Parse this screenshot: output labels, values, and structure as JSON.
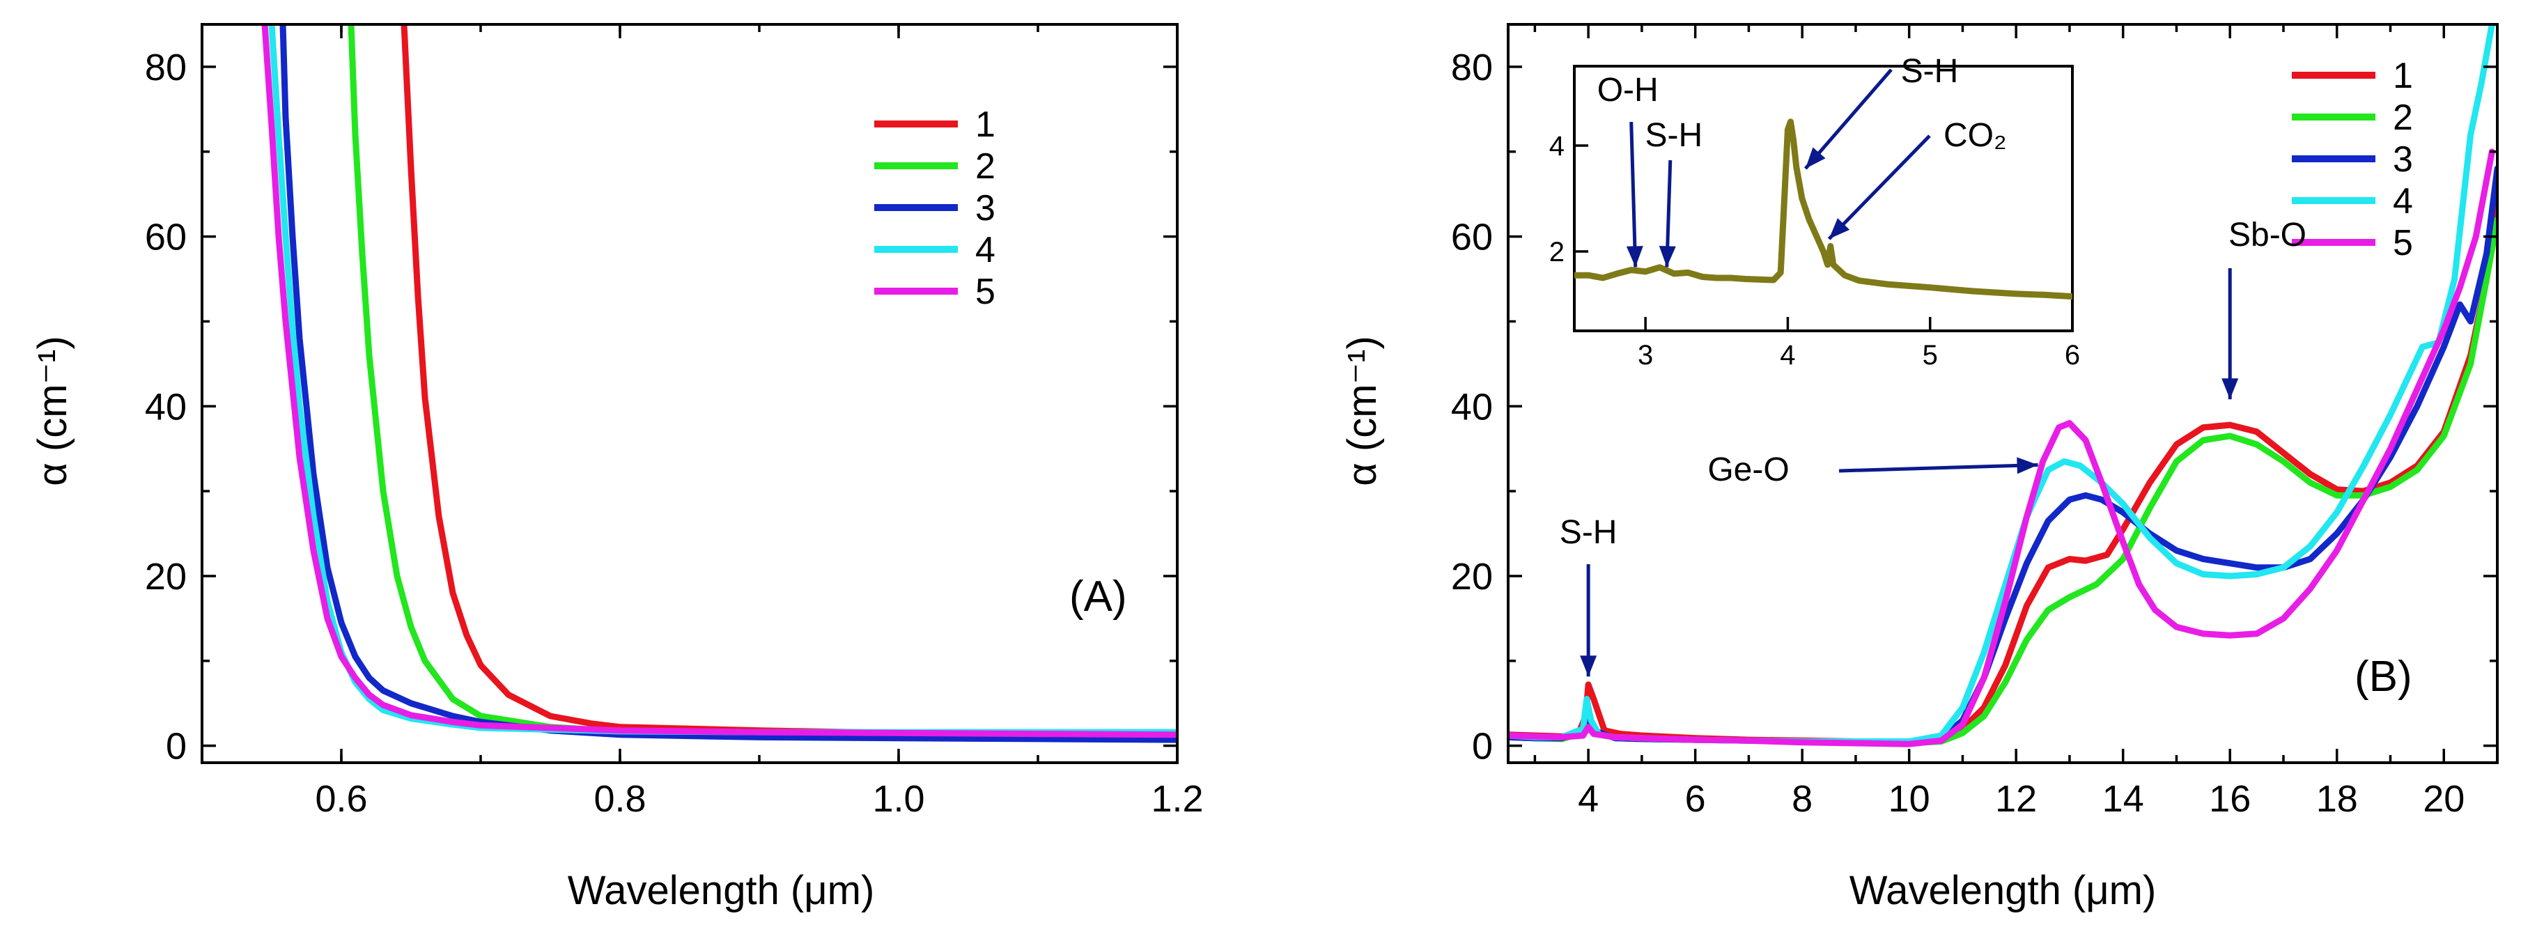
{
  "chart_data": [
    {
      "panel": "A",
      "type": "line",
      "panel_label": "(A)",
      "xlabel": "Wavelength (μm)",
      "ylabel": "α (cm⁻¹)",
      "xlim": [
        0.5,
        1.2
      ],
      "ylim": [
        -2,
        85
      ],
      "xticks": [
        {
          "v": 0.6,
          "label": "0.6"
        },
        {
          "v": 0.8,
          "label": "0.8"
        },
        {
          "v": 1.0,
          "label": "1.0"
        },
        {
          "v": 1.2,
          "label": "1.2"
        }
      ],
      "yticks": [
        {
          "v": 0,
          "label": "0"
        },
        {
          "v": 20,
          "label": "20"
        },
        {
          "v": 40,
          "label": "40"
        },
        {
          "v": 60,
          "label": "60"
        },
        {
          "v": 80,
          "label": "80"
        }
      ],
      "grid": false,
      "legend_position": "top-right",
      "series": [
        {
          "name": "1",
          "color": "#e8141e",
          "x": [
            0.645,
            0.65,
            0.655,
            0.66,
            0.67,
            0.68,
            0.69,
            0.7,
            0.72,
            0.75,
            0.78,
            0.8,
            0.9,
            1.0,
            1.1,
            1.2
          ],
          "y": [
            85,
            68,
            53,
            41,
            27,
            18,
            13,
            9.5,
            6,
            3.5,
            2.6,
            2.2,
            1.8,
            1.5,
            1.4,
            1.3
          ]
        },
        {
          "name": "2",
          "color": "#22e61e",
          "x": [
            0.607,
            0.61,
            0.615,
            0.62,
            0.63,
            0.64,
            0.65,
            0.66,
            0.68,
            0.7,
            0.75,
            0.8,
            0.9,
            1.0,
            1.1,
            1.2
          ],
          "y": [
            85,
            72,
            58,
            46,
            30,
            20,
            14,
            10,
            5.5,
            3.5,
            2.2,
            1.7,
            1.4,
            1.2,
            1.1,
            1.0
          ]
        },
        {
          "name": "3",
          "color": "#1228c8",
          "x": [
            0.558,
            0.56,
            0.565,
            0.57,
            0.58,
            0.59,
            0.6,
            0.61,
            0.62,
            0.63,
            0.65,
            0.68,
            0.7,
            0.75,
            0.8,
            0.9,
            1.0,
            1.1,
            1.2
          ],
          "y": [
            85,
            74,
            60,
            48,
            32,
            21,
            14.5,
            10.5,
            8,
            6.5,
            5,
            3.5,
            2.8,
            1.8,
            1.3,
            1.0,
            0.9,
            0.8,
            0.7
          ]
        },
        {
          "name": "4",
          "color": "#22e6f0",
          "x": [
            0.55,
            0.555,
            0.56,
            0.565,
            0.57,
            0.58,
            0.59,
            0.6,
            0.61,
            0.62,
            0.63,
            0.65,
            0.68,
            0.7,
            0.8,
            0.9,
            1.0,
            1.1,
            1.2
          ],
          "y": [
            85,
            72,
            60,
            49,
            40,
            27,
            17,
            11,
            7.5,
            5.5,
            4.2,
            3.2,
            2.5,
            2.1,
            1.7,
            1.6,
            1.6,
            1.6,
            1.6
          ]
        },
        {
          "name": "5",
          "color": "#e81ee6",
          "x": [
            0.545,
            0.55,
            0.555,
            0.56,
            0.57,
            0.58,
            0.59,
            0.6,
            0.61,
            0.62,
            0.63,
            0.65,
            0.68,
            0.7,
            0.8,
            0.9,
            1.0,
            1.1,
            1.2
          ],
          "y": [
            85,
            73,
            60,
            50,
            34,
            23,
            15,
            10.5,
            8,
            6,
            4.8,
            3.6,
            2.8,
            2.4,
            1.8,
            1.6,
            1.5,
            1.4,
            1.3
          ]
        }
      ]
    },
    {
      "panel": "B",
      "type": "line",
      "panel_label": "(B)",
      "xlabel": "Wavelength (μm)",
      "ylabel": "α (cm⁻¹)",
      "xlim": [
        2.5,
        21
      ],
      "ylim": [
        -2,
        85
      ],
      "xticks": [
        {
          "v": 4,
          "label": "4"
        },
        {
          "v": 6,
          "label": "6"
        },
        {
          "v": 8,
          "label": "8"
        },
        {
          "v": 10,
          "label": "10"
        },
        {
          "v": 12,
          "label": "12"
        },
        {
          "v": 14,
          "label": "14"
        },
        {
          "v": 16,
          "label": "16"
        },
        {
          "v": 18,
          "label": "18"
        },
        {
          "v": 20,
          "label": "20"
        }
      ],
      "yticks": [
        {
          "v": 0,
          "label": "0"
        },
        {
          "v": 20,
          "label": "20"
        },
        {
          "v": 40,
          "label": "40"
        },
        {
          "v": 60,
          "label": "60"
        },
        {
          "v": 80,
          "label": "80"
        }
      ],
      "grid": false,
      "legend_position": "top-right",
      "annotations": [
        {
          "text": "S-H",
          "x": 4.0,
          "y": 7.5
        },
        {
          "text": "Ge-O",
          "x": 12.8,
          "y": 33.5
        },
        {
          "text": "Sb-O",
          "x": 16.0,
          "y": 40.0
        }
      ],
      "series": [
        {
          "name": "1",
          "color": "#e8141e",
          "x": [
            2.5,
            3.0,
            3.5,
            3.8,
            3.95,
            4.0,
            4.1,
            4.3,
            4.6,
            5.0,
            6,
            7,
            8,
            9,
            10,
            10.6,
            11,
            11.4,
            11.8,
            12.2,
            12.6,
            13.0,
            13.3,
            13.7,
            14.0,
            14.5,
            15.0,
            15.5,
            16.0,
            16.5,
            17.0,
            17.5,
            18.0,
            18.5,
            19.0,
            19.5,
            20.0,
            20.5,
            20.8,
            21.0
          ],
          "y": [
            1.3,
            1.2,
            1.1,
            1.2,
            3.5,
            7.2,
            5.5,
            1.8,
            1.4,
            1.2,
            0.9,
            0.7,
            0.6,
            0.5,
            0.4,
            0.8,
            2.0,
            4.5,
            9.5,
            16.5,
            21.0,
            22.0,
            21.8,
            22.5,
            25.5,
            31.0,
            35.5,
            37.5,
            37.8,
            37.0,
            34.5,
            32.0,
            30.2,
            30.0,
            31.0,
            33.0,
            37.0,
            46.0,
            55.0,
            65.0
          ]
        },
        {
          "name": "2",
          "color": "#22e61e",
          "x": [
            2.5,
            3.0,
            3.5,
            3.9,
            4.0,
            4.1,
            4.5,
            5.0,
            6,
            7,
            8,
            9,
            10,
            10.6,
            11,
            11.4,
            11.8,
            12.2,
            12.6,
            13.0,
            13.5,
            14.0,
            14.5,
            15.0,
            15.5,
            16.0,
            16.5,
            17.0,
            17.5,
            18.0,
            18.5,
            19.0,
            19.5,
            20.0,
            20.5,
            20.8,
            21.0
          ],
          "y": [
            1.0,
            0.9,
            0.8,
            1.5,
            3.0,
            1.8,
            0.9,
            0.8,
            0.7,
            0.6,
            0.5,
            0.4,
            0.3,
            0.5,
            1.5,
            3.5,
            7.5,
            12.5,
            16.0,
            17.5,
            19.0,
            22.0,
            28.0,
            33.5,
            36.0,
            36.5,
            35.5,
            33.5,
            31.0,
            29.5,
            29.5,
            30.5,
            32.5,
            36.5,
            45.0,
            55.0,
            62.0
          ]
        },
        {
          "name": "3",
          "color": "#1228c8",
          "x": [
            2.5,
            3.0,
            3.5,
            3.9,
            4.0,
            4.1,
            4.5,
            5.0,
            6,
            7,
            8,
            9,
            10,
            10.6,
            11,
            11.4,
            11.8,
            12.2,
            12.6,
            13.0,
            13.3,
            13.6,
            14.0,
            14.5,
            15.0,
            15.5,
            16.0,
            16.5,
            17.0,
            17.5,
            18.0,
            18.5,
            19.0,
            19.5,
            20.0,
            20.3,
            20.5,
            20.8,
            21.0
          ],
          "y": [
            1.0,
            0.9,
            0.9,
            1.6,
            3.2,
            1.8,
            0.9,
            0.8,
            0.7,
            0.6,
            0.5,
            0.4,
            0.4,
            0.8,
            3.0,
            8.0,
            15.0,
            21.5,
            26.5,
            29.0,
            29.5,
            29.0,
            27.5,
            25.0,
            23.0,
            22.0,
            21.5,
            21.0,
            21.0,
            22.0,
            25.0,
            29.0,
            34.0,
            40.0,
            47.0,
            52.0,
            50.0,
            58.0,
            68.0
          ]
        },
        {
          "name": "4",
          "color": "#22e6f0",
          "x": [
            2.5,
            3.0,
            3.5,
            3.9,
            3.97,
            4.05,
            4.2,
            4.5,
            5.0,
            6,
            7,
            8,
            9,
            10,
            10.6,
            11,
            11.4,
            11.8,
            12.2,
            12.6,
            12.9,
            13.2,
            13.6,
            14.0,
            14.5,
            15.0,
            15.5,
            16.0,
            16.5,
            17.0,
            17.5,
            18.0,
            18.5,
            19.0,
            19.3,
            19.6,
            19.9,
            20.2,
            20.5,
            20.7,
            20.9
          ],
          "y": [
            1.2,
            1.0,
            1.0,
            2.0,
            5.5,
            3.0,
            1.3,
            1.0,
            0.9,
            0.7,
            0.6,
            0.5,
            0.5,
            0.5,
            1.2,
            4.5,
            11.0,
            19.0,
            27.0,
            32.5,
            33.5,
            33.0,
            31.0,
            28.5,
            24.5,
            21.5,
            20.2,
            20.0,
            20.2,
            21.0,
            23.5,
            27.5,
            33.0,
            39.0,
            43.0,
            47.0,
            47.5,
            55.0,
            72.0,
            78.0,
            85.0
          ]
        },
        {
          "name": "5",
          "color": "#e81ee6",
          "x": [
            2.5,
            3.0,
            3.5,
            3.9,
            4.0,
            4.1,
            4.5,
            5.0,
            6,
            7,
            8,
            9,
            10,
            10.6,
            11,
            11.4,
            11.8,
            12.2,
            12.5,
            12.8,
            13.0,
            13.3,
            13.6,
            14.0,
            14.3,
            14.6,
            15.0,
            15.5,
            16.0,
            16.5,
            17.0,
            17.5,
            18.0,
            18.5,
            19.0,
            19.5,
            20.0,
            20.3,
            20.6,
            20.9
          ],
          "y": [
            1.2,
            1.1,
            1.0,
            1.2,
            2.2,
            1.4,
            1.0,
            0.9,
            0.7,
            0.6,
            0.4,
            0.3,
            0.2,
            0.6,
            2.5,
            8.0,
            17.0,
            27.0,
            33.5,
            37.5,
            38.0,
            36.0,
            31.0,
            24.0,
            19.0,
            16.0,
            14.0,
            13.2,
            13.0,
            13.2,
            15.0,
            18.5,
            23.0,
            29.0,
            35.0,
            42.0,
            49.0,
            54.0,
            60.0,
            70.0
          ]
        }
      ],
      "inset": {
        "type": "line",
        "xlim": [
          2.5,
          6
        ],
        "ylim": [
          0.5,
          5.5
        ],
        "xticks": [
          {
            "v": 3,
            "label": "3"
          },
          {
            "v": 4,
            "label": "4"
          },
          {
            "v": 5,
            "label": "5"
          },
          {
            "v": 6,
            "label": "6"
          }
        ],
        "yticks": [
          {
            "v": 2,
            "label": "2"
          },
          {
            "v": 4,
            "label": "4"
          }
        ],
        "annotations": [
          {
            "text": "O-H",
            "x": 2.9,
            "y": 1.6
          },
          {
            "text": "S-H",
            "x": 3.15,
            "y": 1.6
          },
          {
            "text": "S-H",
            "x": 4.1,
            "y": 3.5
          },
          {
            "text": "CO₂",
            "x": 4.28,
            "y": 2.0
          }
        ],
        "series": [
          {
            "color": "#7f7a18",
            "x": [
              2.5,
              2.6,
              2.7,
              2.8,
              2.9,
              3.0,
              3.1,
              3.2,
              3.3,
              3.4,
              3.5,
              3.6,
              3.7,
              3.8,
              3.9,
              3.95,
              3.98,
              4.0,
              4.02,
              4.04,
              4.06,
              4.1,
              4.15,
              4.2,
              4.25,
              4.28,
              4.3,
              4.32,
              4.4,
              4.5,
              4.7,
              5.0,
              5.3,
              5.6,
              5.8,
              6.0
            ],
            "y": [
              1.55,
              1.55,
              1.5,
              1.58,
              1.65,
              1.62,
              1.7,
              1.58,
              1.6,
              1.52,
              1.5,
              1.5,
              1.48,
              1.47,
              1.46,
              1.6,
              3.2,
              4.3,
              4.45,
              4.1,
              3.6,
              3.0,
              2.6,
              2.3,
              2.0,
              1.75,
              2.1,
              1.75,
              1.55,
              1.45,
              1.38,
              1.32,
              1.25,
              1.2,
              1.18,
              1.15
            ]
          }
        ]
      }
    }
  ]
}
